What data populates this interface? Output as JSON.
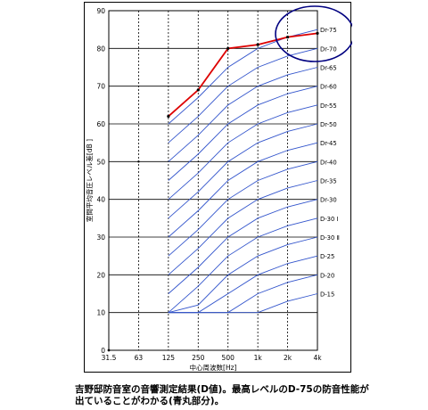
{
  "chart_data": {
    "type": "line",
    "ylabel": "室間平均音圧レベル差[dB ]",
    "xlabel": "中心周波数[Hz]",
    "x_categories": [
      "31.5",
      "63",
      "125",
      "250",
      "500",
      "1k",
      "2k",
      "4k"
    ],
    "ylim": [
      0,
      90
    ],
    "y_ticks": [
      0,
      10,
      20,
      30,
      40,
      50,
      60,
      70,
      80,
      90
    ],
    "grid": true,
    "measured": {
      "x": [
        "125",
        "250",
        "500",
        "1k",
        "2k",
        "4k"
      ],
      "y": [
        62,
        69,
        80,
        81,
        83,
        84
      ],
      "color": "#dd0000"
    },
    "d_curves": {
      "color": "#3355cc",
      "x": [
        "125",
        "250",
        "500",
        "1k",
        "2k",
        "4k"
      ],
      "offsets": [
        -15,
        -8,
        0,
        5,
        8,
        10
      ],
      "ratings": [
        {
          "label": "Dr-75",
          "value": 75
        },
        {
          "label": "Dr-70",
          "value": 70
        },
        {
          "label": "Dr-65",
          "value": 65
        },
        {
          "label": "Dr-60",
          "value": 60
        },
        {
          "label": "Dr-55",
          "value": 55
        },
        {
          "label": "Dr-50",
          "value": 50
        },
        {
          "label": "Dr-45",
          "value": 45
        },
        {
          "label": "Dr-40",
          "value": 40
        },
        {
          "label": "Dr-35",
          "value": 35
        },
        {
          "label": "Dr-30",
          "value": 30
        },
        {
          "label": "D-30 Ⅰ",
          "value": 25
        },
        {
          "label": "D-30 Ⅱ",
          "value": 20
        },
        {
          "label": "D-25",
          "value": 15
        },
        {
          "label": "D-20",
          "value": 10
        },
        {
          "label": "D-15",
          "value": 5
        }
      ]
    },
    "annotation": {
      "type": "ellipse",
      "color": "#000080",
      "around": "Dr-75 / Dr-70 (2k–4k)"
    }
  },
  "caption": {
    "line1": "吉野邸防音室の音響測定結果(D値)。最高レベルのD-75の防音性能が",
    "line2": "出ていることがわかる(青丸部分)。"
  }
}
